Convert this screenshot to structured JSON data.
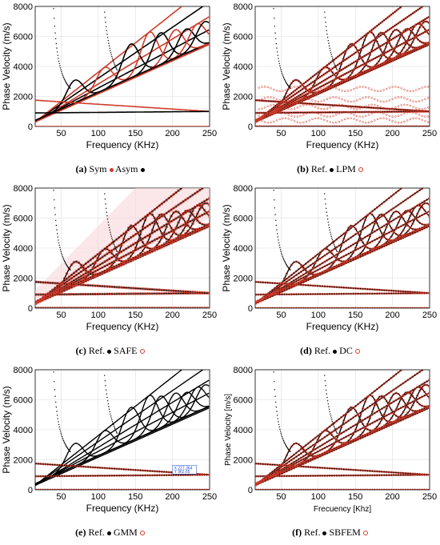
{
  "chart_data": [
    {
      "type": "line",
      "panel": "a",
      "caption": {
        "letter": "(a)",
        "text": "Sym",
        "text2": "Asym"
      },
      "legend": [
        {
          "name": "Sym",
          "marker": "red-dot"
        },
        {
          "name": "Asym",
          "marker": "black-dot"
        }
      ],
      "xlabel": "Frequency (KHz)",
      "ylabel": "Phase Velocity (m/s)",
      "xlim": [
        15,
        250
      ],
      "ylim": [
        0,
        8000
      ],
      "xticks": [
        "50",
        "100",
        "150",
        "200",
        "250"
      ],
      "yticks": [
        "0",
        "2000",
        "4000",
        "6000",
        "8000"
      ],
      "grid": true
    },
    {
      "type": "line",
      "panel": "b",
      "caption": {
        "letter": "(b)",
        "text": "Ref.",
        "text2": "LPM"
      },
      "legend": [
        {
          "name": "Ref.",
          "marker": "black-dot"
        },
        {
          "name": "LPM",
          "marker": "red-circle"
        }
      ],
      "xlabel": "Frequency (KHz)",
      "ylabel": "Phase Velocity (m/s)",
      "xlim": [
        15,
        250
      ],
      "ylim": [
        0,
        8000
      ],
      "xticks": [
        "50",
        "100",
        "150",
        "200",
        "250"
      ],
      "yticks": [
        "0",
        "2000",
        "4000",
        "6000",
        "8000"
      ],
      "grid": true
    },
    {
      "type": "line",
      "panel": "c",
      "caption": {
        "letter": "(c)",
        "text": "Ref.",
        "text2": "SAFE"
      },
      "legend": [
        {
          "name": "Ref.",
          "marker": "black-dot"
        },
        {
          "name": "SAFE",
          "marker": "red-circle"
        }
      ],
      "xlabel": "Frequency (KHz)",
      "ylabel": "Phase Velocity (m/s)",
      "xlim": [
        15,
        250
      ],
      "ylim": [
        0,
        8000
      ],
      "xticks": [
        "50",
        "100",
        "150",
        "200",
        "250"
      ],
      "yticks": [
        "0",
        "2000",
        "4000",
        "6000",
        "8000"
      ],
      "grid": true
    },
    {
      "type": "line",
      "panel": "d",
      "caption": {
        "letter": "(d)",
        "text": "Ref.",
        "text2": "DC"
      },
      "legend": [
        {
          "name": "Ref.",
          "marker": "black-dot"
        },
        {
          "name": "DC",
          "marker": "red-circle"
        }
      ],
      "xlabel": "Frequency (KHz)",
      "ylabel": "Phase Velocity (m/s)",
      "xlim": [
        15,
        250
      ],
      "ylim": [
        0,
        8000
      ],
      "xticks": [
        "50",
        "100",
        "150",
        "200",
        "250"
      ],
      "yticks": [
        "0",
        "2000",
        "4000",
        "6000",
        "8000"
      ],
      "grid": true
    },
    {
      "type": "line",
      "panel": "e",
      "caption": {
        "letter": "(e)",
        "text": "Ref.",
        "text2": "GMM"
      },
      "legend": [
        {
          "name": "Ref.",
          "marker": "black-dot"
        },
        {
          "name": "GMM",
          "marker": "red-circle"
        }
      ],
      "xlabel": "Frequency (KHz)",
      "ylabel": "Phase Velocity (m/s)",
      "xlim": [
        15,
        250
      ],
      "ylim": [
        0,
        8000
      ],
      "xticks": [
        "50",
        "100",
        "150",
        "200",
        "250"
      ],
      "yticks": [
        "0",
        "2000",
        "4000",
        "6000",
        "8000"
      ],
      "grid": true,
      "annotation": {
        "line1": "X 227.364",
        "line2": "Y 962.65"
      }
    },
    {
      "type": "line",
      "panel": "f",
      "caption": {
        "letter": "(f)",
        "text": "Ref.",
        "text2": "SBFEM"
      },
      "legend": [
        {
          "name": "Ref.",
          "marker": "black-dot"
        },
        {
          "name": "SBFEM",
          "marker": "red-circle"
        }
      ],
      "xlabel": "Frecuency [Khz]",
      "ylabel": "Phase Velocity [m/s]",
      "xlim": [
        15,
        250
      ],
      "ylim": [
        0,
        8000
      ],
      "xticks": [
        "50",
        "100",
        "150",
        "200",
        "250"
      ],
      "yticks": [
        "0",
        "2000",
        "4000",
        "6000",
        "8000"
      ],
      "grid": true
    }
  ],
  "modes": {
    "rising": [
      {
        "base": 300,
        "slope": 22.0
      },
      {
        "base": 350,
        "slope": 26.0
      },
      {
        "base": 280,
        "slope": 30.0
      },
      {
        "base": 320,
        "slope": 34.0
      },
      {
        "base": 300,
        "slope": 39.0
      }
    ],
    "peaks": [
      {
        "xc": 70,
        "yp": 3100
      },
      {
        "xc": 110,
        "yp": 3950
      },
      {
        "xc": 145,
        "yp": 5500
      },
      {
        "xc": 170,
        "yp": 6300
      },
      {
        "xc": 185,
        "yp": 6250
      },
      {
        "xc": 205,
        "yp": 6450
      },
      {
        "xc": 220,
        "yp": 6500
      },
      {
        "xc": 235,
        "yp": 6850
      },
      {
        "xc": 245,
        "yp": 7000
      }
    ],
    "cutoff": [
      {
        "x0": 33,
        "k": 8000
      },
      {
        "x0": 96,
        "k": 14000
      }
    ],
    "flat": [
      {
        "y0": 1750,
        "y1": 1000
      },
      {
        "y0": 900,
        "y1": 1000
      },
      {
        "y0": 0,
        "y1": 0
      }
    ]
  },
  "colors": {
    "ref": "#000000",
    "red": "#d03b2a",
    "pink": "#f2a5ac",
    "grid": "#dcdcdc"
  }
}
